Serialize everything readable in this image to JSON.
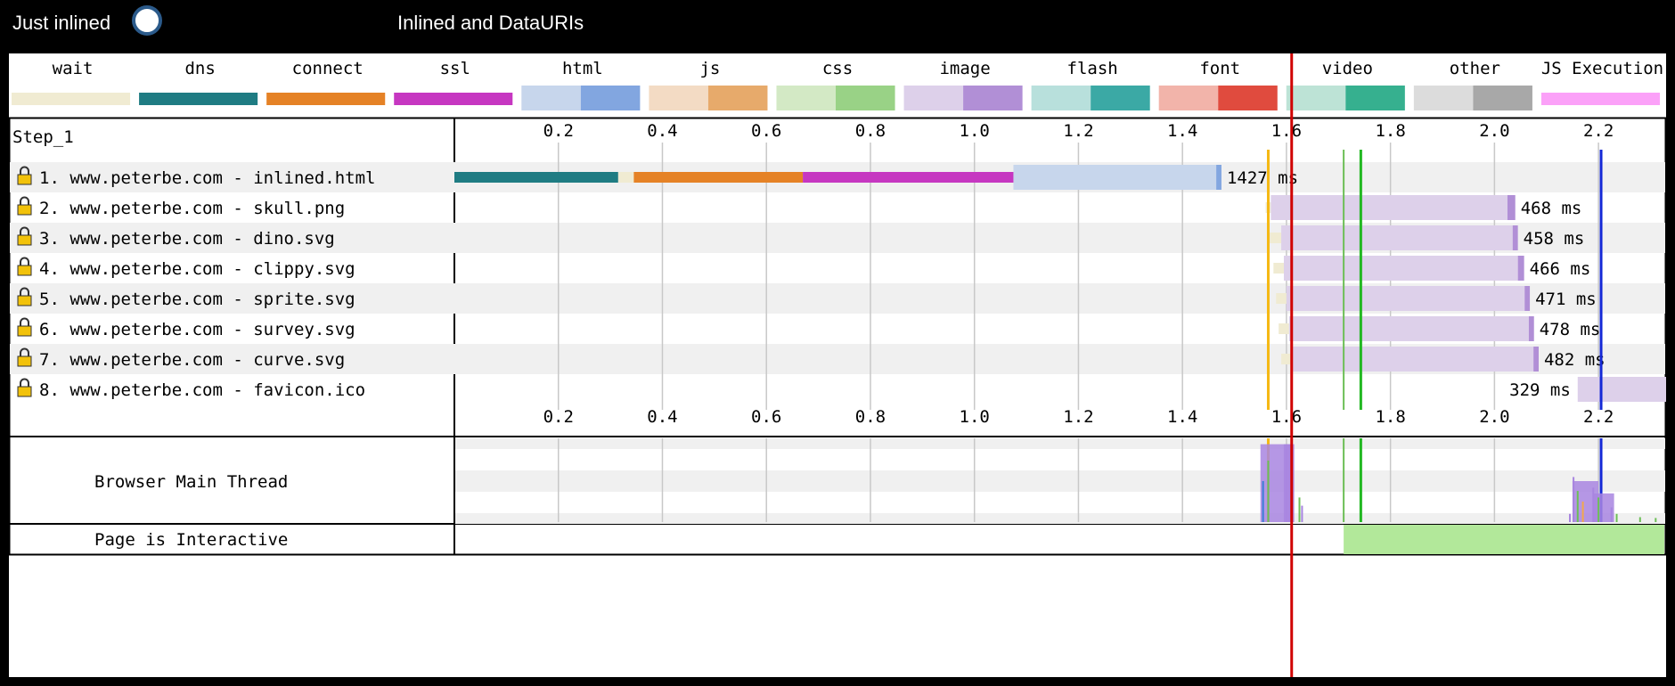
{
  "header": {
    "left_label": "Just inlined",
    "right_label": "Inlined and DataURIs"
  },
  "legend": [
    {
      "label": "wait",
      "colors": [
        "#f0ebd2"
      ]
    },
    {
      "label": "dns",
      "colors": [
        "#1f7c83"
      ]
    },
    {
      "label": "connect",
      "colors": [
        "#e58226"
      ]
    },
    {
      "label": "ssl",
      "colors": [
        "#c637c1"
      ]
    },
    {
      "label": "html",
      "colors": [
        "#c7d6ec",
        "#82a6e0"
      ]
    },
    {
      "label": "js",
      "colors": [
        "#f3dbc4",
        "#e7aa6b"
      ]
    },
    {
      "label": "css",
      "colors": [
        "#d3e9c5",
        "#99d286"
      ]
    },
    {
      "label": "image",
      "colors": [
        "#ddd0ea",
        "#b18fd6"
      ]
    },
    {
      "label": "flash",
      "colors": [
        "#b8e0dc",
        "#3ba9a5"
      ]
    },
    {
      "label": "font",
      "colors": [
        "#f2b4aa",
        "#e04b3e"
      ]
    },
    {
      "label": "video",
      "colors": [
        "#bde3d6",
        "#36b08f"
      ]
    },
    {
      "label": "other",
      "colors": [
        "#dcdcdc",
        "#a8a8a8"
      ]
    },
    {
      "label": "JS Execution",
      "colors": [
        "#fba1f8"
      ]
    }
  ],
  "step_label": "Step_1",
  "thread_label": "Browser Main Thread",
  "interactive_label": "Page is Interactive",
  "colors": {
    "start_render": "#f5b813",
    "dom_content": "#6dbf57",
    "onload": "#22b822",
    "doc_complete": "#1428d6",
    "cursor": "#d00000",
    "interactive": "#b2e89a",
    "row_alt": "#f0f0f0",
    "grid": "#c8c8c8"
  },
  "chart_data": {
    "type": "waterfall",
    "x_unit": "seconds",
    "xlim": [
      0,
      2.33
    ],
    "ticks": [
      "0.2",
      "0.4",
      "0.6",
      "0.8",
      "1.0",
      "1.2",
      "1.4",
      "1.6",
      "1.8",
      "2.0",
      "2.2"
    ],
    "tick_values": [
      0.2,
      0.4,
      0.6,
      0.8,
      1.0,
      1.2,
      1.4,
      1.6,
      1.8,
      2.0,
      2.2
    ],
    "requests": [
      {
        "label": "1. www.peterbe.com - inlined.html",
        "type": "html",
        "duration_label": "1427 ms",
        "phases": [
          {
            "kind": "dns",
            "start": 0.0,
            "end": 0.315
          },
          {
            "kind": "wait",
            "start": 0.315,
            "end": 0.345
          },
          {
            "kind": "connect",
            "start": 0.345,
            "end": 0.67
          },
          {
            "kind": "ssl",
            "start": 0.67,
            "end": 1.075
          }
        ],
        "ttfb_start": 1.075,
        "download_start": 1.465,
        "end": 1.475
      },
      {
        "label": "2. www.peterbe.com - skull.png",
        "type": "image",
        "duration_label": "468 ms",
        "phases": [
          {
            "kind": "wait",
            "start": 1.56,
            "end": 1.57
          }
        ],
        "ttfb_start": 1.57,
        "download_start": 2.025,
        "end": 2.04
      },
      {
        "label": "3. www.peterbe.com - dino.svg",
        "type": "image",
        "duration_label": "458 ms",
        "phases": [
          {
            "kind": "wait",
            "start": 1.565,
            "end": 1.59
          }
        ],
        "ttfb_start": 1.59,
        "download_start": 2.035,
        "end": 2.045
      },
      {
        "label": "4. www.peterbe.com - clippy.svg",
        "type": "image",
        "duration_label": "466 ms",
        "phases": [
          {
            "kind": "wait",
            "start": 1.575,
            "end": 1.595
          }
        ],
        "ttfb_start": 1.595,
        "download_start": 2.045,
        "end": 2.057
      },
      {
        "label": "5. www.peterbe.com - sprite.svg",
        "type": "image",
        "duration_label": "471 ms",
        "phases": [
          {
            "kind": "wait",
            "start": 1.58,
            "end": 1.6
          }
        ],
        "ttfb_start": 1.6,
        "download_start": 2.058,
        "end": 2.068
      },
      {
        "label": "6. www.peterbe.com - survey.svg",
        "type": "image",
        "duration_label": "478 ms",
        "phases": [
          {
            "kind": "wait",
            "start": 1.585,
            "end": 1.605
          }
        ],
        "ttfb_start": 1.605,
        "download_start": 2.066,
        "end": 2.076
      },
      {
        "label": "7. www.peterbe.com - curve.svg",
        "type": "image",
        "duration_label": "482 ms",
        "phases": [
          {
            "kind": "wait",
            "start": 1.59,
            "end": 1.61
          }
        ],
        "ttfb_start": 1.61,
        "download_start": 2.075,
        "end": 2.085
      },
      {
        "label": "8. www.peterbe.com - favicon.ico",
        "type": "image",
        "duration_label": "329 ms",
        "phases": [],
        "ttfb_start": 2.16,
        "download_start": 2.33,
        "end": 2.33,
        "label_before_bar": true
      }
    ],
    "markers": [
      {
        "name": "start_render",
        "x": 1.565
      },
      {
        "name": "dom_content",
        "x": 1.71
      },
      {
        "name": "onload",
        "x": 1.743
      },
      {
        "name": "doc_complete",
        "x": 2.205
      }
    ],
    "cursor_x": 1.61,
    "interactive_start": 1.71,
    "main_thread": {
      "bursts": [
        {
          "center": 1.58,
          "width": 0.06,
          "height": 0.95,
          "color": "#a885e0"
        },
        {
          "center": 1.605,
          "width": 0.02,
          "height": 0.95,
          "color": "#a885e0"
        },
        {
          "center": 2.175,
          "width": 0.05,
          "height": 0.5,
          "color": "#a885e0"
        },
        {
          "center": 2.21,
          "width": 0.04,
          "height": 0.35,
          "color": "#a885e0"
        }
      ],
      "spikes": [
        {
          "x": 1.555,
          "h": 0.5,
          "color": "#3a7fd6"
        },
        {
          "x": 1.565,
          "h": 0.75,
          "color": "#6dbf57"
        },
        {
          "x": 1.625,
          "h": 0.3,
          "color": "#6dbf57"
        },
        {
          "x": 1.63,
          "h": 0.2,
          "color": "#a885e0"
        },
        {
          "x": 2.145,
          "h": 0.1,
          "color": "#a885e0"
        },
        {
          "x": 2.152,
          "h": 0.55,
          "color": "#a885e0"
        },
        {
          "x": 2.16,
          "h": 0.38,
          "color": "#6dbf57"
        },
        {
          "x": 2.17,
          "h": 0.25,
          "color": "#f2a84b"
        },
        {
          "x": 2.19,
          "h": 0.42,
          "color": "#a885e0"
        },
        {
          "x": 2.2,
          "h": 0.3,
          "color": "#6dbf57"
        },
        {
          "x": 2.225,
          "h": 0.18,
          "color": "#a885e0"
        },
        {
          "x": 2.235,
          "h": 0.1,
          "color": "#6dbf57"
        },
        {
          "x": 2.28,
          "h": 0.06,
          "color": "#6dbf57"
        },
        {
          "x": 2.31,
          "h": 0.05,
          "color": "#6dbf57"
        }
      ]
    }
  }
}
